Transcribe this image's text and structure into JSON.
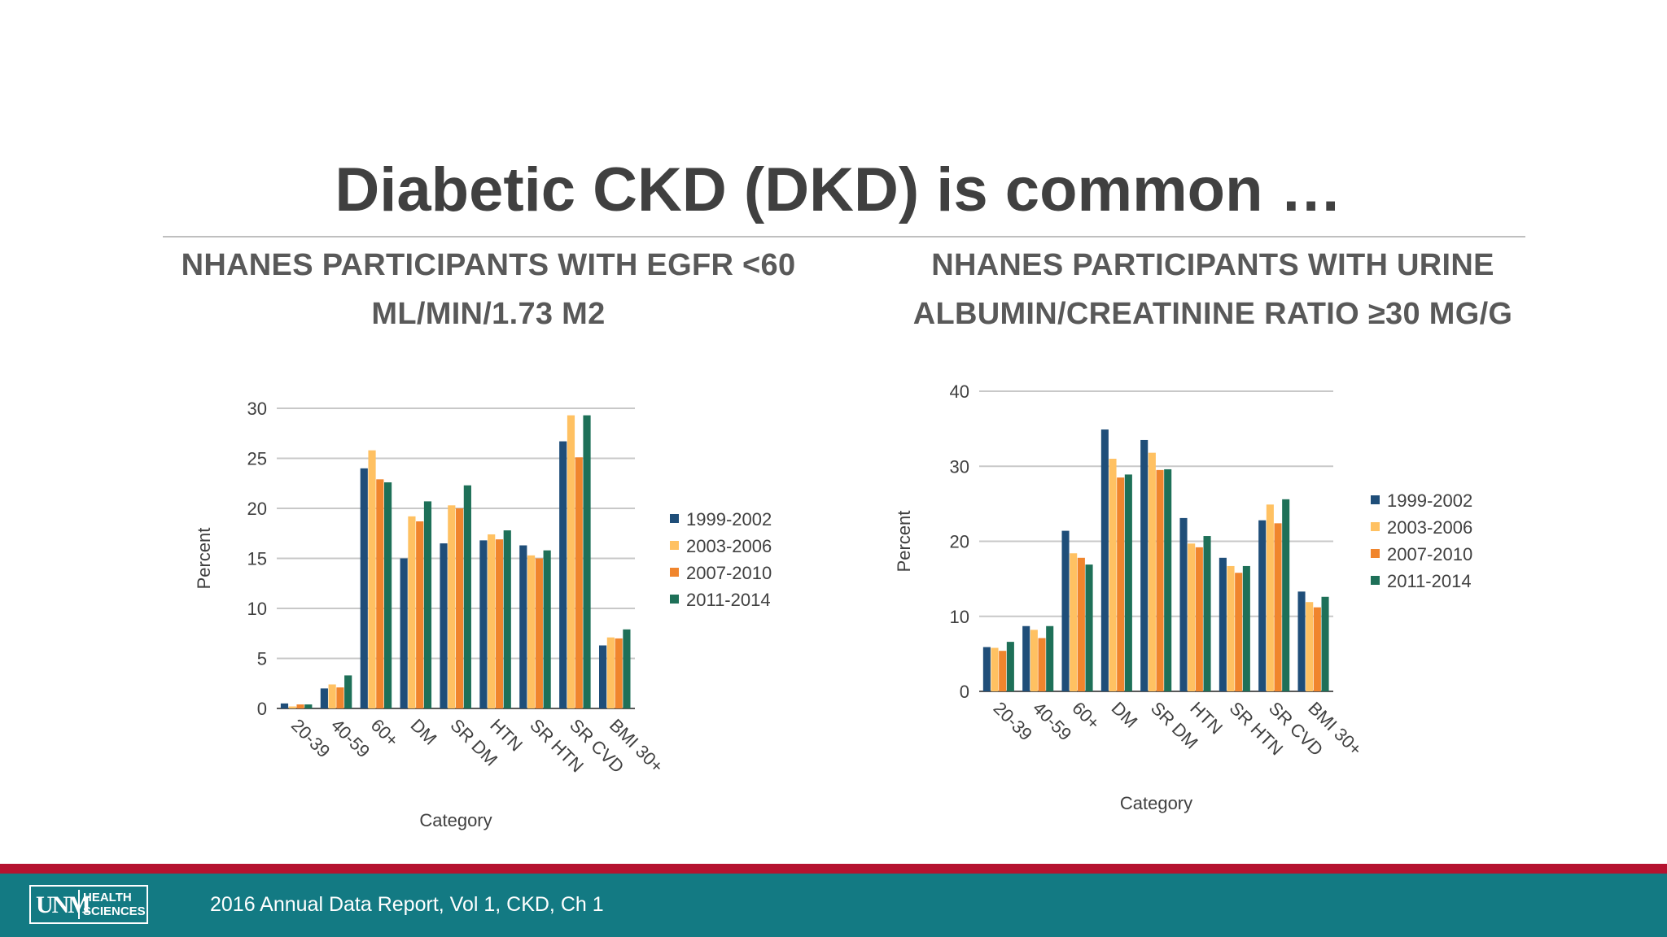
{
  "slide": {
    "title": "Diabetic CKD (DKD) is common …",
    "subtitle_left": "NHANES PARTICIPANTS WITH EGFR <60 ML/MIN/1.73 M2",
    "subtitle_right": "NHANES PARTICIPANTS WITH URINE ALBUMIN/CREATININE RATIO ≥30 MG/G"
  },
  "footer": {
    "citation": "2016 Annual Data Report, Vol 1, CKD, Ch 1",
    "logo_mark": "UNM",
    "logo_line1": "HEALTH",
    "logo_line2": "SCIENCES"
  },
  "colors": {
    "series": [
      "#1f4e79",
      "#ffc162",
      "#f0852d",
      "#1e7058"
    ],
    "footer_bar": "#137a83",
    "footer_stripe": "#b5122f"
  },
  "chart_data": [
    {
      "type": "bar",
      "categories": [
        "20-39",
        "40-59",
        "60+",
        "DM",
        "SR DM",
        "HTN",
        "SR HTN",
        "SR CVD",
        "BMI 30+"
      ],
      "series": [
        {
          "name": "1999-2002",
          "values": [
            0.5,
            2.0,
            24.0,
            15.0,
            16.5,
            16.8,
            16.3,
            26.7,
            6.3
          ]
        },
        {
          "name": "2003-2006",
          "values": [
            0.2,
            2.4,
            25.8,
            19.2,
            20.3,
            17.4,
            15.3,
            29.3,
            7.1
          ]
        },
        {
          "name": "2007-2010",
          "values": [
            0.4,
            2.1,
            22.9,
            18.7,
            20.0,
            16.9,
            15.0,
            25.1,
            7.0
          ]
        },
        {
          "name": "2011-2014",
          "values": [
            0.4,
            3.3,
            22.6,
            20.7,
            22.3,
            17.8,
            15.8,
            29.3,
            7.9
          ]
        }
      ],
      "xlabel": "Category",
      "ylabel": "Percent",
      "ylim": [
        0,
        30
      ],
      "yticks": [
        0,
        5,
        10,
        15,
        20,
        25,
        30
      ],
      "grid": true,
      "legend": "right"
    },
    {
      "type": "bar",
      "categories": [
        "20-39",
        "40-59",
        "60+",
        "DM",
        "SR DM",
        "HTN",
        "SR HTN",
        "SR CVD",
        "BMI 30+"
      ],
      "series": [
        {
          "name": "1999-2002",
          "values": [
            5.9,
            8.7,
            21.4,
            34.9,
            33.5,
            23.1,
            17.8,
            22.8,
            13.3
          ]
        },
        {
          "name": "2003-2006",
          "values": [
            5.8,
            8.2,
            18.4,
            31.0,
            31.8,
            19.7,
            16.7,
            24.9,
            11.9
          ]
        },
        {
          "name": "2007-2010",
          "values": [
            5.4,
            7.1,
            17.8,
            28.5,
            29.5,
            19.2,
            15.8,
            22.4,
            11.2
          ]
        },
        {
          "name": "2011-2014",
          "values": [
            6.6,
            8.7,
            16.9,
            28.9,
            29.6,
            20.7,
            16.7,
            25.6,
            12.6
          ]
        }
      ],
      "xlabel": "Category",
      "ylabel": "Percent",
      "ylim": [
        0,
        40
      ],
      "yticks": [
        0,
        10,
        20,
        30,
        40
      ],
      "grid": true,
      "legend": "right"
    }
  ]
}
